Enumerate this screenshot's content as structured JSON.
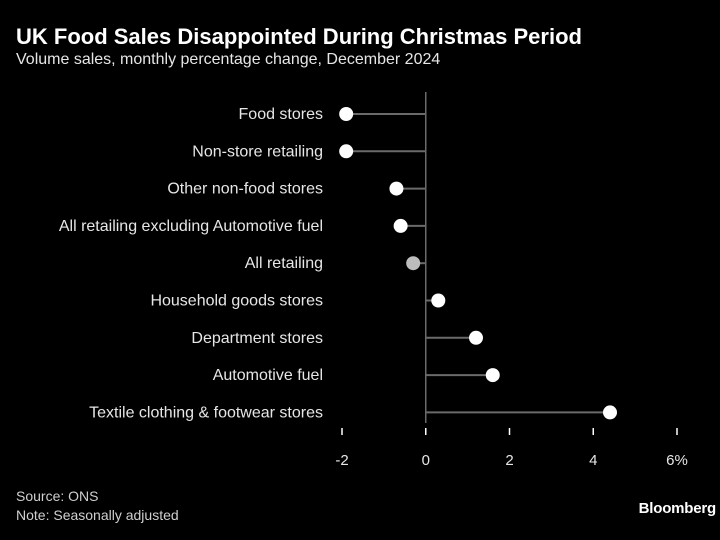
{
  "header": {
    "title": "UK Food Sales Disappointed During Christmas Period",
    "subtitle": "Volume sales, monthly percentage change, December 2024"
  },
  "footer": {
    "source": "Source: ONS",
    "note": "Note: Seasonally adjusted",
    "brand": "Bloomberg"
  },
  "colors": {
    "background": "#000000",
    "dot": "#ffffff",
    "highlight_dot": "#bdbdbd",
    "stem": "#6a6a6a",
    "text": "#e6e6e6"
  },
  "chart_data": {
    "type": "lollipop",
    "orientation": "horizontal",
    "title": "UK Food Sales Disappointed During Christmas Period",
    "subtitle": "Volume sales, monthly percentage change, December 2024",
    "xlim": [
      -2,
      6
    ],
    "xticks": [
      -2,
      0,
      2,
      4,
      6
    ],
    "xtick_labels": [
      "-2",
      "0",
      "2",
      "4",
      "6%"
    ],
    "grid": false,
    "categories": [
      "Food stores",
      "Non-store retailing",
      "Other non-food stores",
      "All retailing excluding Automotive fuel",
      "All retailing",
      "Household goods stores",
      "Department stores",
      "Automotive fuel",
      "Textile clothing & footwear stores"
    ],
    "values": [
      -1.9,
      -1.9,
      -0.7,
      -0.6,
      -0.3,
      0.3,
      1.2,
      1.6,
      4.4
    ],
    "highlight": "All retailing"
  }
}
